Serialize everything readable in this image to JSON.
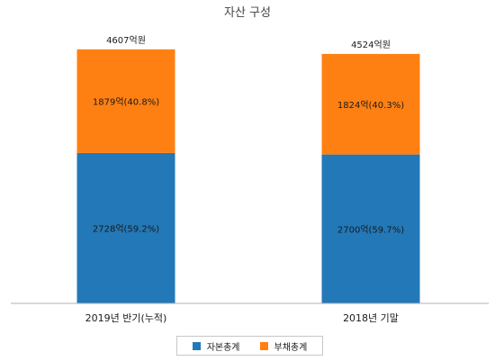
{
  "chart_data": {
    "type": "bar",
    "stacked": true,
    "title": "자산 구성",
    "categories": [
      "2019년 반기(누적)",
      "2018년 기말"
    ],
    "series": [
      {
        "name": "자본총계",
        "color": "#2378b8",
        "values": [
          2728,
          2700
        ],
        "labels": [
          "2728억(59.2%)",
          "2700억(59.7%)"
        ]
      },
      {
        "name": "부채총계",
        "color": "#ff8012",
        "values": [
          1879,
          1824
        ],
        "labels": [
          "1879억(40.8%)",
          "1824억(40.3%)"
        ]
      }
    ],
    "totals": [
      4607,
      4524
    ],
    "total_labels": [
      "4607억원",
      "4524억원"
    ],
    "unit": "억원",
    "ylim": [
      0,
      4800
    ],
    "grid": false,
    "legend": "bottom"
  }
}
